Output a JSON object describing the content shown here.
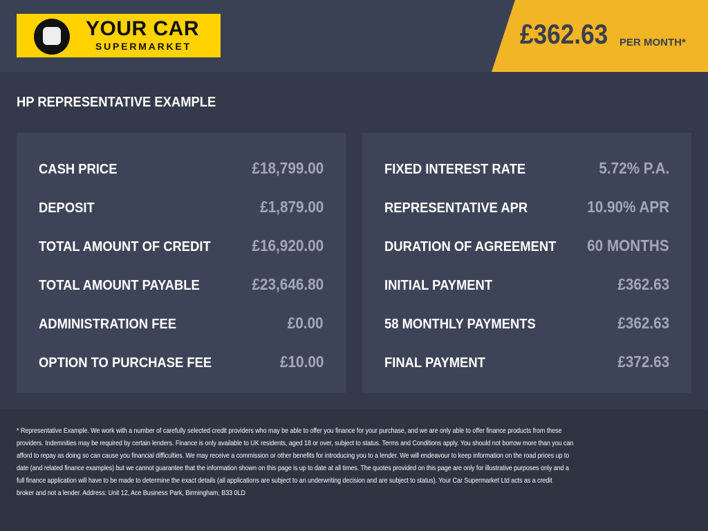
{
  "logo": {
    "line1": "YOUR CAR",
    "line2": "SUPERMARKET",
    "colors": {
      "yellow": "#ffd200"
    }
  },
  "badge": {
    "price": "£362.63",
    "suffix": "PER MONTH*",
    "color": "#f2b526"
  },
  "title": "HP REPRESENTATIVE EXAMPLE",
  "left": [
    {
      "label": "CASH PRICE",
      "value": "£18,799.00"
    },
    {
      "label": "DEPOSIT",
      "value": "£1,879.00"
    },
    {
      "label": "TOTAL AMOUNT OF CREDIT",
      "value": "£16,920.00"
    },
    {
      "label": "TOTAL AMOUNT PAYABLE",
      "value": "£23,646.80"
    },
    {
      "label": "ADMINISTRATION FEE",
      "value": "£0.00"
    },
    {
      "label": "OPTION TO PURCHASE FEE",
      "value": "£10.00"
    }
  ],
  "right": [
    {
      "label": "FIXED INTEREST RATE",
      "value": "5.72% P.A."
    },
    {
      "label": "REPRESENTATIVE APR",
      "value": "10.90% APR"
    },
    {
      "label": "DURATION OF AGREEMENT",
      "value": "60 MONTHS"
    },
    {
      "label": "INITIAL PAYMENT",
      "value": "£362.63"
    },
    {
      "label": "58 MONTHLY PAYMENTS",
      "value": "£362.63"
    },
    {
      "label": "FINAL PAYMENT",
      "value": "£372.63"
    }
  ],
  "footer": [
    "* Representative Example. We work with a number of carefully selected credit providers who may be able to offer you finance for your purchase, and we are only able to offer finance products from these",
    "providers. Indemnities may be required by certain lenders. Finance is only available to UK residents, aged 18 or over, subject to status. Terms and Conditions apply. You should not borrow more than you can",
    "afford to repay as doing so can cause you financial difficulties. We may receive a commission or other benefits for introducing you to a lender. We will endeavour to keep information on the road prices up to",
    "date (and related finance examples) but we cannot guarantee that the information shown on this page is up to date at all times. The quotes provided on this page are only for illustrative purposes only and a",
    "full finance application will have to be made to determine the exact details (all applications are subject to an underwriting decision and are subject to status). Your Car Supermarket Ltd acts as a credit",
    "broker and not a lender. Address: Unit 12, Ace Business Park, Birmingham, B33 0LD"
  ]
}
